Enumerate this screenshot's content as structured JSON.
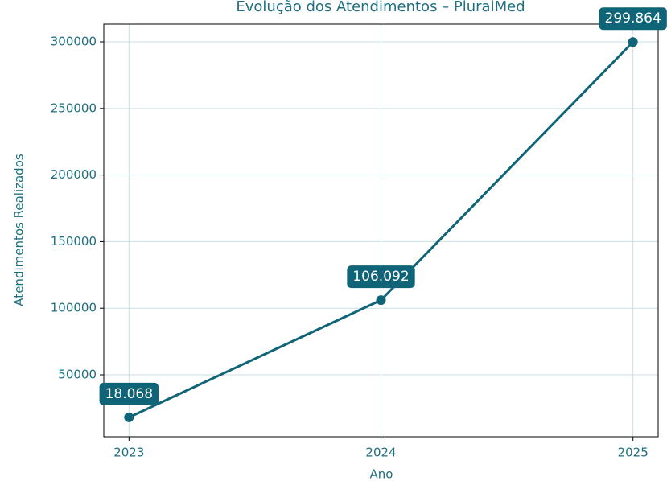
{
  "chart_data": {
    "type": "line",
    "title": "Evolução dos Atendimentos – PluralMed",
    "xlabel": "Ano",
    "ylabel": "Atendimentos Realizados",
    "x": [
      2023,
      2024,
      2025
    ],
    "values": [
      18068,
      106092,
      299864
    ],
    "value_labels": [
      "18.068",
      "106.092",
      "299.864"
    ],
    "color": "#0f6477",
    "xlim": [
      2022.9,
      2025.1
    ],
    "xticks": [
      2023,
      2024,
      2025
    ],
    "ylim": [
      3500,
      313300
    ],
    "yticks": [
      50000,
      100000,
      150000,
      200000,
      250000,
      300000
    ],
    "grid": true
  }
}
